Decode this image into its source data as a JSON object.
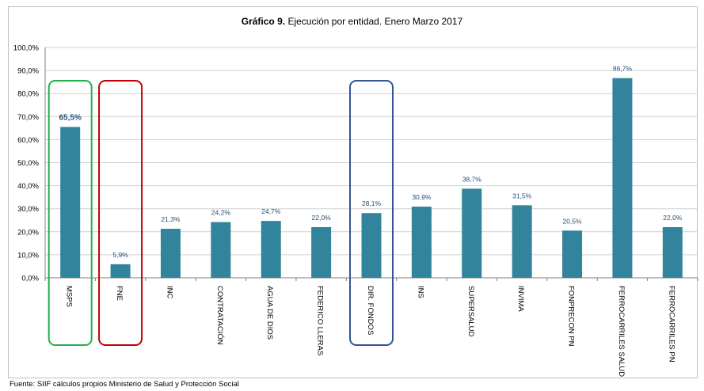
{
  "chart_data": {
    "type": "bar",
    "title_bold": "Gráfico 9.",
    "title_rest": " Ejecución  por entidad. Enero Marzo 2017",
    "categories": [
      "MSPS",
      "FNE",
      "INC",
      "CONTRATACIÓN",
      "AGUA DE DIOS",
      "FEDERICO LLERAS",
      "DIR. FONDOS",
      "INS",
      "SUPERSALUD",
      "INVIMA",
      "FONPRECON PN",
      "FERROCARRILES SALUD",
      "FERROCARRILES PN"
    ],
    "values": [
      65.5,
      5.9,
      21.3,
      24.2,
      24.7,
      22.0,
      28.1,
      30.9,
      38.7,
      31.5,
      20.5,
      86.7,
      22.0
    ],
    "data_labels": [
      "65,5%",
      "5,9%",
      "21,3%",
      "24,2%",
      "24,7%",
      "22,0%",
      "28,1%",
      "30,9%",
      "38,7%",
      "31,5%",
      "20,5%",
      "86,7%",
      "22,0%"
    ],
    "ylim": [
      0,
      100
    ],
    "yticks": [
      "0,0%",
      "10,0%",
      "20,0%",
      "30,0%",
      "40,0%",
      "50,0%",
      "60,0%",
      "70,0%",
      "80,0%",
      "90,0%",
      "100,0%"
    ],
    "grid": true,
    "bar_color": "#31849b",
    "highlights": [
      {
        "category": "MSPS",
        "color": "#22b14c"
      },
      {
        "category": "FNE",
        "color": "#c00000"
      },
      {
        "category": "DIR. FONDOS",
        "color": "#2f5597"
      }
    ],
    "source_note": "Fuente:  SIIF cálculos propios Ministerio de Salud y Protección Social"
  }
}
